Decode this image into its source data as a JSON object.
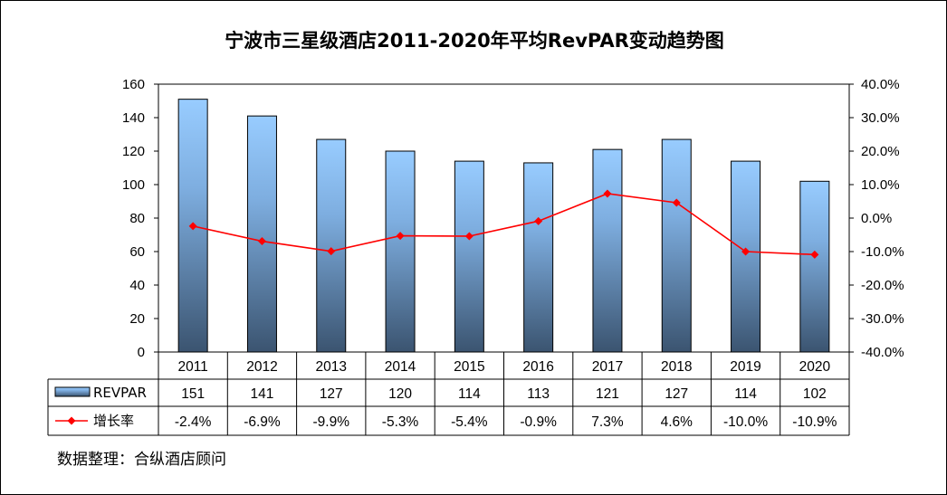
{
  "chart_data": {
    "type": "bar+line",
    "title": "宁波市三星级酒店2011-2020年平均RevPAR变动趋势图",
    "categories": [
      "2011",
      "2012",
      "2013",
      "2014",
      "2015",
      "2016",
      "2017",
      "2018",
      "2019",
      "2020"
    ],
    "series": [
      {
        "name": "REVPAR",
        "type": "bar",
        "axis": "left",
        "color": "#8fbfef",
        "values": [
          151,
          141,
          127,
          120,
          114,
          113,
          121,
          127,
          114,
          102
        ]
      },
      {
        "name": "增长率",
        "type": "line",
        "axis": "right",
        "color": "#ff0000",
        "values": [
          -2.4,
          -6.9,
          -9.9,
          -5.3,
          -5.4,
          -0.9,
          7.3,
          4.6,
          -10.0,
          -10.9
        ],
        "labels": [
          "-2.4%",
          "-6.9%",
          "-9.9%",
          "-5.3%",
          "-5.4%",
          "-0.9%",
          "7.3%",
          "4.6%",
          "-10.0%",
          "-10.9%"
        ]
      }
    ],
    "y_left": {
      "min": 0,
      "max": 160,
      "step": 20,
      "ticks": [
        "0",
        "20",
        "40",
        "60",
        "80",
        "100",
        "120",
        "140",
        "160"
      ]
    },
    "y_right": {
      "min": -40,
      "max": 40,
      "step": 10,
      "ticks": [
        "-40.0%",
        "-30.0%",
        "-20.0%",
        "-10.0%",
        "0.0%",
        "10.0%",
        "20.0%",
        "30.0%",
        "40.0%"
      ]
    },
    "data_table": true,
    "grid": false
  },
  "source": "数据整理：合纵酒店顾问"
}
